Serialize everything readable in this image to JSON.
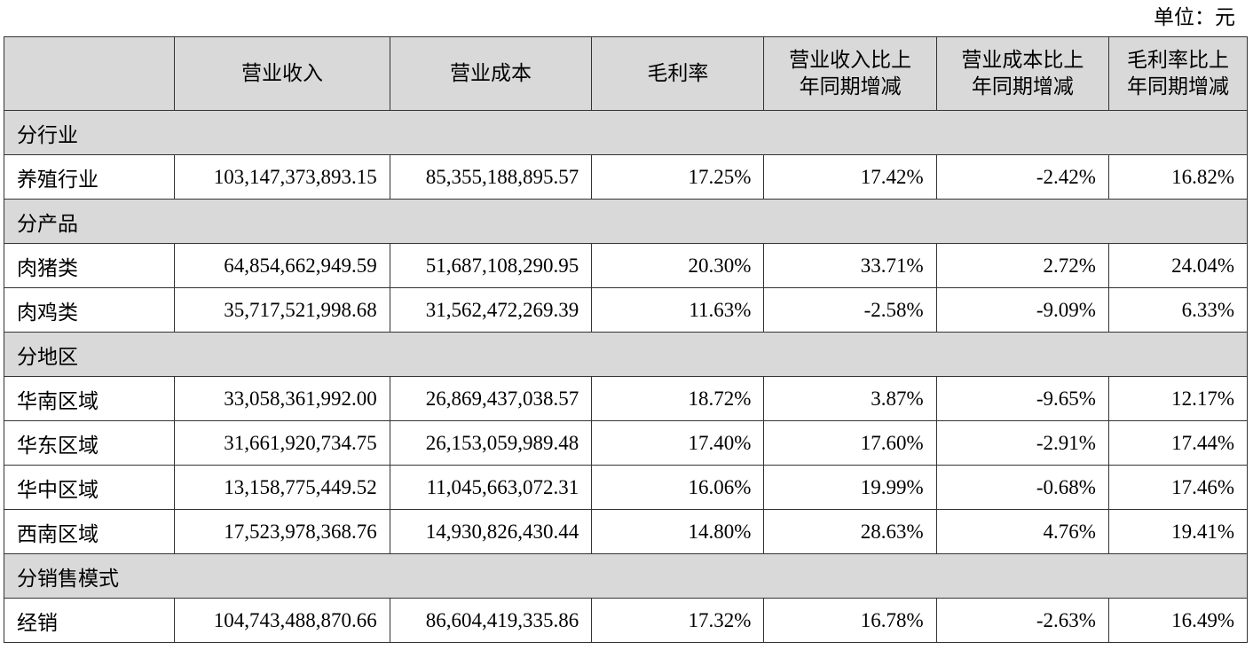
{
  "unit_label": "单位：元",
  "headers": [
    {
      "lines": [
        ""
      ]
    },
    {
      "lines": [
        "营业收入"
      ]
    },
    {
      "lines": [
        "营业成本"
      ]
    },
    {
      "lines": [
        "毛利率"
      ]
    },
    {
      "lines": [
        "营业收入比上",
        "年同期增减"
      ]
    },
    {
      "lines": [
        "营业成本比上",
        "年同期增减"
      ]
    },
    {
      "lines": [
        "毛利率比上",
        "年同期增减"
      ]
    }
  ],
  "sections": [
    {
      "title": "分行业",
      "rows": [
        [
          "养殖行业",
          "103,147,373,893.15",
          "85,355,188,895.57",
          "17.25%",
          "17.42%",
          "-2.42%",
          "16.82%"
        ]
      ]
    },
    {
      "title": "分产品",
      "rows": [
        [
          "肉猪类",
          "64,854,662,949.59",
          "51,687,108,290.95",
          "20.30%",
          "33.71%",
          "2.72%",
          "24.04%"
        ],
        [
          "肉鸡类",
          "35,717,521,998.68",
          "31,562,472,269.39",
          "11.63%",
          "-2.58%",
          "-9.09%",
          "6.33%"
        ]
      ]
    },
    {
      "title": "分地区",
      "rows": [
        [
          "华南区域",
          "33,058,361,992.00",
          "26,869,437,038.57",
          "18.72%",
          "3.87%",
          "-9.65%",
          "12.17%"
        ],
        [
          "华东区域",
          "31,661,920,734.75",
          "26,153,059,989.48",
          "17.40%",
          "17.60%",
          "-2.91%",
          "17.44%"
        ],
        [
          "华中区域",
          "13,158,775,449.52",
          "11,045,663,072.31",
          "16.06%",
          "19.99%",
          "-0.68%",
          "17.46%"
        ],
        [
          "西南区域",
          "17,523,978,368.76",
          "14,930,826,430.44",
          "14.80%",
          "28.63%",
          "4.76%",
          "19.41%"
        ]
      ]
    },
    {
      "title": "分销售模式",
      "rows": [
        [
          "经销",
          "104,743,488,870.66",
          "86,604,419,335.86",
          "17.32%",
          "16.78%",
          "-2.63%",
          "16.49%"
        ]
      ]
    }
  ]
}
